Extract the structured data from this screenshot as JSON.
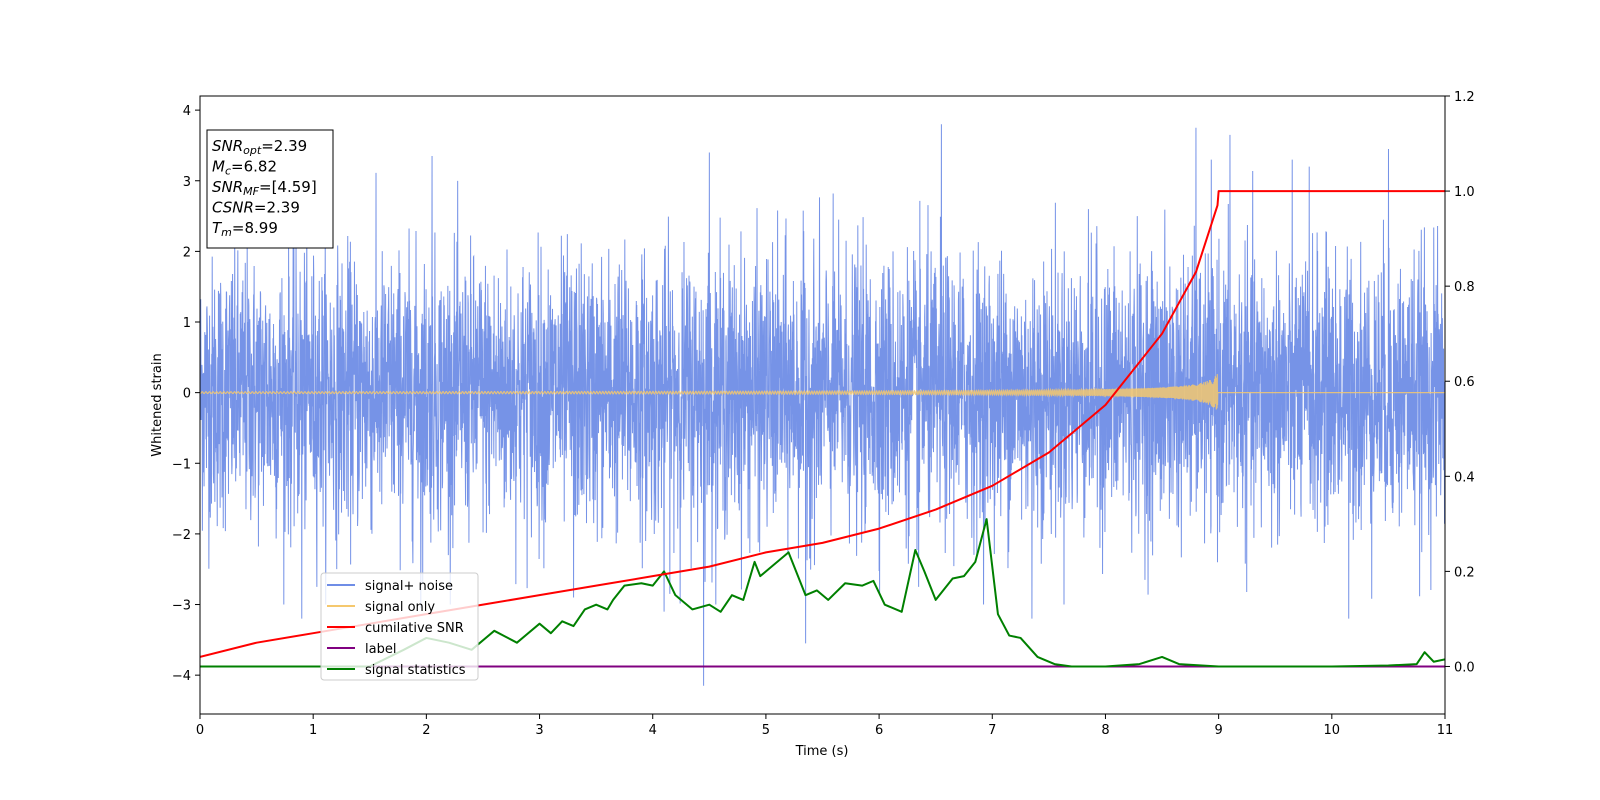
{
  "chart_data": {
    "type": "line",
    "xlabel": "Time (s)",
    "ylabel": "Whitened strain",
    "xlim": [
      0,
      11
    ],
    "ylim_left": [
      -4.55,
      4.2
    ],
    "ylim_right": [
      -0.1,
      1.2
    ],
    "x_ticks": [
      0,
      1,
      2,
      3,
      4,
      5,
      6,
      7,
      8,
      9,
      10,
      11
    ],
    "y_ticks_left": [
      -4,
      -3,
      -2,
      -1,
      0,
      1,
      2,
      3,
      4
    ],
    "y_ticks_left_labels": [
      "−4",
      "−3",
      "−2",
      "−1",
      "0",
      "1",
      "2",
      "3",
      "4"
    ],
    "y_ticks_right": [
      0.0,
      0.2,
      0.4,
      0.6,
      0.8,
      1.0,
      1.2
    ],
    "y_ticks_right_labels": [
      "0.0",
      "0.2",
      "0.4",
      "0.6",
      "0.8",
      "1.0",
      "1.2"
    ],
    "grid": false,
    "legend_position": "lower-left",
    "info_box": [
      {
        "base": "SNR",
        "sub": "opt",
        "text": "=2.39"
      },
      {
        "base": "M",
        "sub": "c",
        "text": "=6.82"
      },
      {
        "base": "SNR",
        "sub": "MF",
        "text": "=[4.59]"
      },
      {
        "base": "CSNR",
        "sub": "",
        "text": "=2.39"
      },
      {
        "base": "T",
        "sub": "m",
        "text": "=8.99"
      }
    ],
    "series": [
      {
        "name": "signal+ noise",
        "color": "#6f8de6",
        "axis": "left",
        "description": "dense noise spanning about -3.5 to 3.8 over the full 0-11 s range",
        "peaks": [
          [
            0.9,
            -3.2
          ],
          [
            1.95,
            -3.05
          ],
          [
            2.05,
            3.35
          ],
          [
            3.3,
            -2.9
          ],
          [
            4.1,
            -3.1
          ],
          [
            4.45,
            -4.15
          ],
          [
            4.5,
            3.4
          ],
          [
            5.35,
            -3.55
          ],
          [
            6.55,
            3.8
          ],
          [
            6.35,
            -2.75
          ],
          [
            7.35,
            -3.2
          ],
          [
            8.8,
            3.75
          ],
          [
            9.1,
            3.65
          ],
          [
            9.8,
            3.2
          ],
          [
            10.5,
            3.45
          ],
          [
            10.15,
            -3.2
          ]
        ]
      },
      {
        "name": "signal only",
        "color": "#f5c86e",
        "axis": "left",
        "description": "chirp with slowly growing amplitude, max about 0.27 at 8.99 s, zero afterwards",
        "merger_time": 8.99,
        "peak_amplitude": 0.27
      },
      {
        "name": "cumilative SNR",
        "color": "#ff0000",
        "axis": "right",
        "x": [
          0.0,
          0.5,
          1.0,
          1.5,
          2.0,
          2.5,
          3.0,
          3.5,
          4.0,
          4.5,
          5.0,
          5.5,
          6.0,
          6.5,
          7.0,
          7.5,
          8.0,
          8.5,
          8.8,
          8.99,
          9.0,
          11.0
        ],
        "y": [
          0.02,
          0.05,
          0.07,
          0.09,
          0.11,
          0.13,
          0.15,
          0.17,
          0.19,
          0.21,
          0.24,
          0.26,
          0.29,
          0.33,
          0.38,
          0.45,
          0.55,
          0.7,
          0.83,
          0.97,
          1.0,
          1.0
        ]
      },
      {
        "name": "label",
        "color": "#800080",
        "axis": "right",
        "x": [
          0,
          11
        ],
        "y": [
          0.0,
          0.0
        ]
      },
      {
        "name": "signal statistics",
        "color": "#008000",
        "axis": "right",
        "x": [
          0.0,
          0.5,
          1.0,
          1.5,
          1.8,
          2.0,
          2.2,
          2.4,
          2.6,
          2.8,
          3.0,
          3.1,
          3.2,
          3.3,
          3.4,
          3.5,
          3.6,
          3.65,
          3.75,
          3.9,
          4.0,
          4.1,
          4.2,
          4.35,
          4.5,
          4.6,
          4.7,
          4.8,
          4.9,
          4.95,
          5.05,
          5.2,
          5.35,
          5.45,
          5.55,
          5.7,
          5.85,
          5.95,
          6.05,
          6.2,
          6.32,
          6.4,
          6.5,
          6.65,
          6.75,
          6.85,
          6.95,
          7.05,
          7.15,
          7.25,
          7.4,
          7.55,
          7.7,
          8.0,
          8.3,
          8.5,
          8.65,
          9.0,
          9.5,
          10.0,
          10.5,
          10.75,
          10.82,
          10.9,
          11.0
        ],
        "y": [
          0.0,
          0.0,
          0.0,
          0.0,
          0.035,
          0.06,
          0.05,
          0.035,
          0.075,
          0.05,
          0.09,
          0.07,
          0.095,
          0.085,
          0.12,
          0.13,
          0.12,
          0.14,
          0.17,
          0.175,
          0.17,
          0.2,
          0.15,
          0.12,
          0.13,
          0.115,
          0.15,
          0.14,
          0.22,
          0.19,
          0.21,
          0.24,
          0.15,
          0.16,
          0.14,
          0.175,
          0.17,
          0.18,
          0.13,
          0.115,
          0.245,
          0.2,
          0.14,
          0.185,
          0.19,
          0.22,
          0.31,
          0.11,
          0.065,
          0.06,
          0.02,
          0.005,
          0.0,
          0.0,
          0.005,
          0.02,
          0.005,
          0.0,
          0.0,
          0.0,
          0.002,
          0.005,
          0.03,
          0.01,
          0.015
        ]
      }
    ]
  }
}
